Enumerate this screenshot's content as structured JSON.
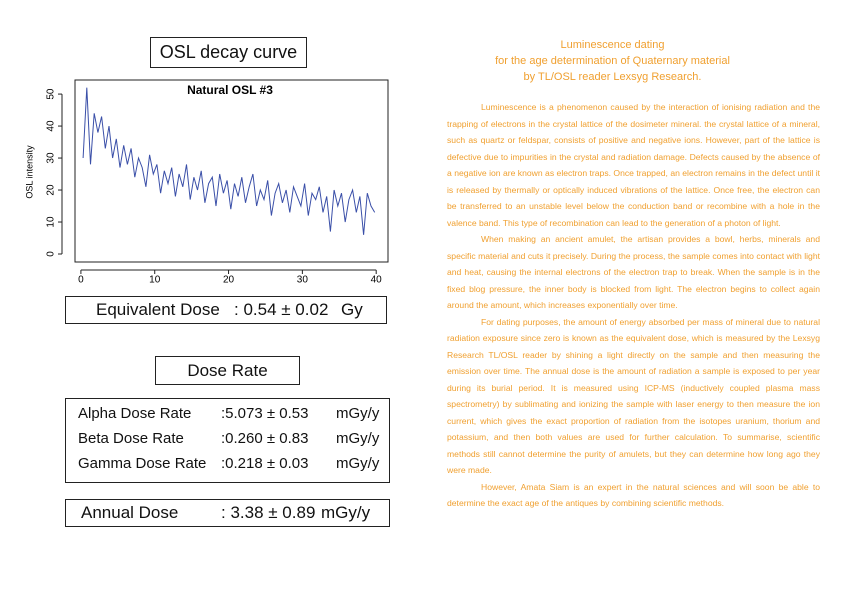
{
  "left": {
    "heading": "OSL decay curve",
    "equivalent": {
      "label": "Equivalent Dose",
      "value": ": 0.54 ± 0.02",
      "unit": "Gy"
    },
    "dose_rate_heading": "Dose Rate",
    "rates": [
      {
        "label": "Alpha Dose Rate",
        "value": ":5.073 ± 0.53",
        "unit": "mGy/y"
      },
      {
        "label": "Beta Dose Rate",
        "value": ":0.260 ± 0.83",
        "unit": "mGy/y"
      },
      {
        "label": "Gamma Dose Rate",
        "value": ":0.218 ± 0.03",
        "unit": "mGy/y"
      }
    ],
    "annual": {
      "label": "Annual Dose",
      "value": ": 3.38 ± 0.89",
      "unit": "mGy/y"
    }
  },
  "chart_data": {
    "type": "line",
    "title": "Natural OSL #3",
    "y_label": "OSL intensity",
    "color": "#3a4fa8",
    "x": [
      0.3,
      0.8,
      1.3,
      1.8,
      2.3,
      2.8,
      3.3,
      3.8,
      4.3,
      4.8,
      5.3,
      5.8,
      6.3,
      6.8,
      7.3,
      7.8,
      8.3,
      8.8,
      9.3,
      9.8,
      10.3,
      10.8,
      11.3,
      11.8,
      12.3,
      12.8,
      13.3,
      13.8,
      14.3,
      14.8,
      15.3,
      15.8,
      16.3,
      16.8,
      17.3,
      17.8,
      18.3,
      18.8,
      19.3,
      19.8,
      20.3,
      20.8,
      21.3,
      21.8,
      22.3,
      22.8,
      23.3,
      23.8,
      24.3,
      24.8,
      25.3,
      25.8,
      26.3,
      26.8,
      27.3,
      27.8,
      28.3,
      28.8,
      29.3,
      29.8,
      30.3,
      30.8,
      31.3,
      31.8,
      32.3,
      32.8,
      33.3,
      33.8,
      34.3,
      34.8,
      35.3,
      35.8,
      36.3,
      36.8,
      37.3,
      37.8,
      38.3,
      38.8,
      39.3,
      39.8
    ],
    "series": [
      {
        "values": [
          30,
          52,
          28,
          44,
          38,
          43,
          33,
          40,
          30,
          36,
          27,
          34,
          28,
          33,
          24,
          30,
          27,
          21,
          31,
          25,
          28,
          19,
          26,
          22,
          27,
          18,
          25,
          21,
          28,
          17,
          24,
          20,
          26,
          16,
          22,
          24,
          15,
          25,
          19,
          23,
          14,
          22,
          18,
          24,
          16,
          21,
          25,
          15,
          20,
          17,
          23,
          12,
          19,
          22,
          16,
          20,
          13,
          21,
          18,
          15,
          22,
          12,
          19,
          17,
          21,
          13,
          18,
          7,
          20,
          15,
          19,
          10,
          17,
          20,
          13,
          18,
          6,
          19,
          15,
          13
        ]
      }
    ],
    "xlim": [
      -0.8,
      41.6
    ],
    "ylim": [
      -2.5,
      54.4
    ],
    "xticks": [
      0,
      10,
      20,
      30,
      40
    ],
    "yticks": [
      0,
      10,
      20,
      30,
      40,
      50
    ]
  },
  "article": {
    "title": [
      "Luminescence dating",
      "for the age determination of Quaternary material",
      "by TL/OSL reader Lexsyg Research."
    ],
    "paragraphs": [
      "Luminescence is a phenomenon caused by the interaction of ionising radiation and the trapping of electrons in the crystal lattice of the dosimeter mineral. the crystal lattice of a mineral, such as quartz or feldspar, consists of positive and negative ions. However, part of the lattice is defective due to impurities in the crystal and radiation damage. Defects caused by the absence of a negative ion are known as electron traps. Once trapped, an electron remains in the defect until it is released by thermally or optically induced vibrations of the lattice. Once free, the electron can be transferred to an unstable level below the conduction band or recombine with a hole in the valence band. This type of recombination can lead to the generation of a photon of light.",
      "When making an ancient amulet, the artisan provides a bowl, herbs, minerals and specific material and cuts it precisely. During the process, the sample comes into contact with light and heat, causing the internal electrons of the electron trap to break. When the sample is in the fixed blog pressure, the inner body is blocked from light. The electron begins to collect again around the amount, which increases exponentially over time.",
      "For dating purposes, the amount of energy absorbed per mass of mineral due to natural radiation exposure since zero is known as the equivalent dose, which is measured by the Lexsyg Research TL/OSL reader by shining a light directly on the sample and then measuring the emission over time. The annual dose is the amount of radiation a sample is exposed to per year during its burial period. It is measured using ICP-MS (inductively coupled plasma mass spectrometry) by sublimating and ionizing the sample with laser energy to then measure the ion current, which gives the exact proportion of radiation from the isotopes uranium, thorium and potassium, and then both values are used for further calculation. To summarise, scientific methods still cannot determine the purity of amulets, but they can determine how long ago they were made.",
      "However, Amata Siam is an expert in the natural sciences and will soon be able to determine the exact age of the antiques by combining scientific methods."
    ]
  }
}
